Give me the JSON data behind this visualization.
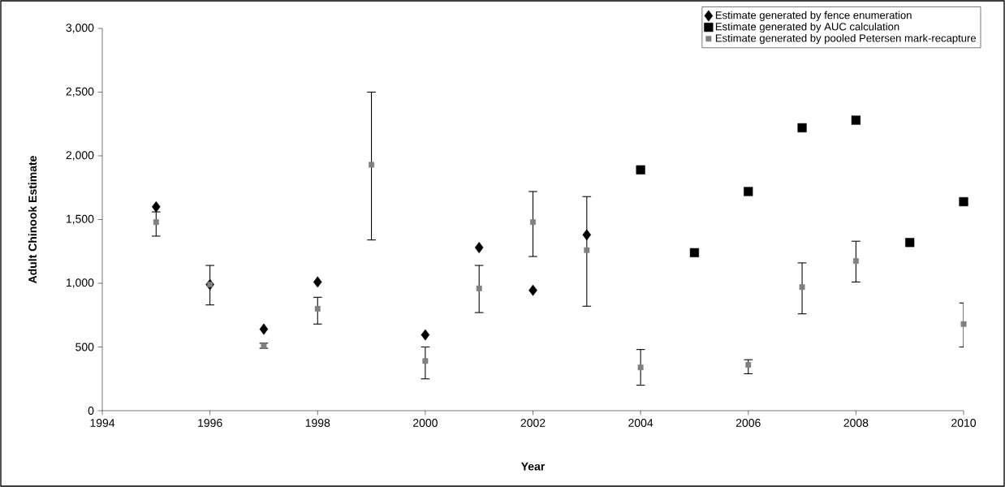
{
  "chart_data": {
    "type": "scatter",
    "xlabel": "Year",
    "ylabel": "Adult Chinook Estimate",
    "xlim": [
      1994,
      2010
    ],
    "xticks": [
      1994,
      1996,
      1998,
      2000,
      2002,
      2004,
      2006,
      2008,
      2010
    ],
    "ylim": [
      0,
      3000
    ],
    "yticks": [
      0,
      {
        "value": 500,
        "label": "500"
      },
      {
        "value": 1000,
        "label": "1,000"
      },
      {
        "value": 1500,
        "label": "1,500"
      },
      {
        "value": 2000,
        "label": "2,000"
      },
      {
        "value": 2500,
        "label": "2,500"
      },
      {
        "value": 3000,
        "label": "3,000"
      }
    ],
    "grid": false,
    "legend": "top right",
    "series": [
      {
        "name": "Estimate generated by fence enumeration",
        "color": "#000000",
        "marker": "diamond",
        "x": [
          1995,
          1996,
          1997,
          1998,
          2000,
          2001,
          2002,
          2003
        ],
        "values": [
          1600,
          990,
          640,
          1010,
          595,
          1280,
          945,
          1380
        ]
      },
      {
        "name": "Estimate generated by AUC calculation",
        "color": "#000000",
        "marker": "square",
        "x": [
          2004,
          2005,
          2006,
          2007,
          2008,
          2009,
          2010
        ],
        "values": [
          1890,
          1240,
          1720,
          2220,
          2280,
          1320,
          1640
        ]
      },
      {
        "name": "Estimate generated by pooled Petersen mark-recapture",
        "color": "#808080",
        "marker": "square",
        "x": [
          1995,
          1996,
          1997,
          1998,
          1999,
          2000,
          2001,
          2002,
          2003,
          2004,
          2006,
          2007,
          2008,
          2010
        ],
        "values": [
          1480,
          990,
          510,
          800,
          1930,
          390,
          960,
          1480,
          1260,
          340,
          360,
          970,
          1175,
          680
        ],
        "errors": [
          [
            1370,
            1560
          ],
          [
            830,
            1140
          ],
          [
            490,
            530
          ],
          [
            680,
            890
          ],
          [
            1340,
            2500
          ],
          [
            250,
            500
          ],
          [
            770,
            1140
          ],
          [
            1210,
            1720
          ],
          [
            820,
            1680
          ],
          [
            200,
            480
          ],
          [
            290,
            400
          ],
          [
            760,
            1160
          ],
          [
            1010,
            1330
          ],
          [
            500,
            845
          ]
        ]
      }
    ]
  }
}
